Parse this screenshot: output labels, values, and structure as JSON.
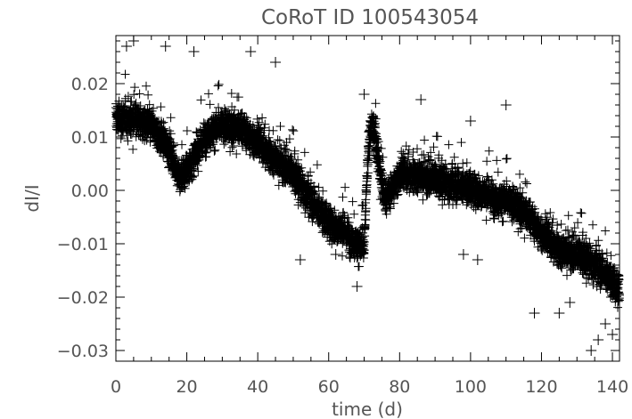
{
  "chart_data": {
    "type": "scatter",
    "title": "CoRoT ID 100543054",
    "xlabel": "time (d)",
    "ylabel": "dI/I",
    "xlim": [
      0,
      142
    ],
    "ylim": [
      -0.032,
      0.029
    ],
    "xticks": [
      0,
      20,
      40,
      60,
      80,
      100,
      120,
      140
    ],
    "xtick_labels": [
      "0",
      "20",
      "40",
      "60",
      "80",
      "100",
      "120",
      "140"
    ],
    "yticks": [
      -0.03,
      -0.02,
      -0.01,
      0.0,
      0.01,
      0.02
    ],
    "ytick_labels": [
      "−0.03",
      "−0.02",
      "−0.01",
      "0.00",
      "0.01",
      "0.02"
    ],
    "marker": "+",
    "color": "#000000",
    "grid": false,
    "legend": false,
    "series": [
      {
        "trend": {
          "x": [
            0,
            5,
            10,
            15,
            18,
            22,
            26,
            30,
            35,
            40,
            45,
            50,
            55,
            60,
            65,
            68,
            70,
            71,
            72,
            73,
            74,
            75,
            76,
            80,
            85,
            90,
            95,
            100,
            105,
            110,
            113,
            115,
            120,
            125,
            130,
            135,
            140,
            142
          ],
          "y": [
            0.0135,
            0.0135,
            0.012,
            0.008,
            0.002,
            0.006,
            0.011,
            0.012,
            0.0115,
            0.009,
            0.006,
            0.003,
            -0.002,
            -0.006,
            -0.008,
            -0.01,
            -0.011,
            0.006,
            0.012,
            0.011,
            0.006,
            0.001,
            -0.002,
            0.003,
            0.003,
            0.002,
            0.001,
            0.0005,
            -0.001,
            -0.002,
            -0.003,
            -0.004,
            -0.008,
            -0.011,
            -0.012,
            -0.014,
            -0.017,
            -0.019
          ]
        },
        "scatter_sd": 0.003,
        "outliers": [
          {
            "x": 3,
            "y": 0.027
          },
          {
            "x": 5,
            "y": 0.028
          },
          {
            "x": 14,
            "y": 0.027
          },
          {
            "x": 22,
            "y": 0.026
          },
          {
            "x": 38,
            "y": 0.026
          },
          {
            "x": 45,
            "y": 0.024
          },
          {
            "x": 52,
            "y": -0.013
          },
          {
            "x": 62,
            "y": -0.012
          },
          {
            "x": 68,
            "y": -0.018
          },
          {
            "x": 70,
            "y": 0.018
          },
          {
            "x": 86,
            "y": 0.017
          },
          {
            "x": 98,
            "y": -0.012
          },
          {
            "x": 100,
            "y": 0.013
          },
          {
            "x": 102,
            "y": -0.013
          },
          {
            "x": 110,
            "y": 0.016
          },
          {
            "x": 118,
            "y": -0.023
          },
          {
            "x": 125,
            "y": -0.023
          },
          {
            "x": 128,
            "y": -0.021
          },
          {
            "x": 134,
            "y": -0.03
          },
          {
            "x": 136,
            "y": -0.028
          },
          {
            "x": 138,
            "y": -0.025
          },
          {
            "x": 140,
            "y": -0.027
          }
        ]
      }
    ]
  }
}
